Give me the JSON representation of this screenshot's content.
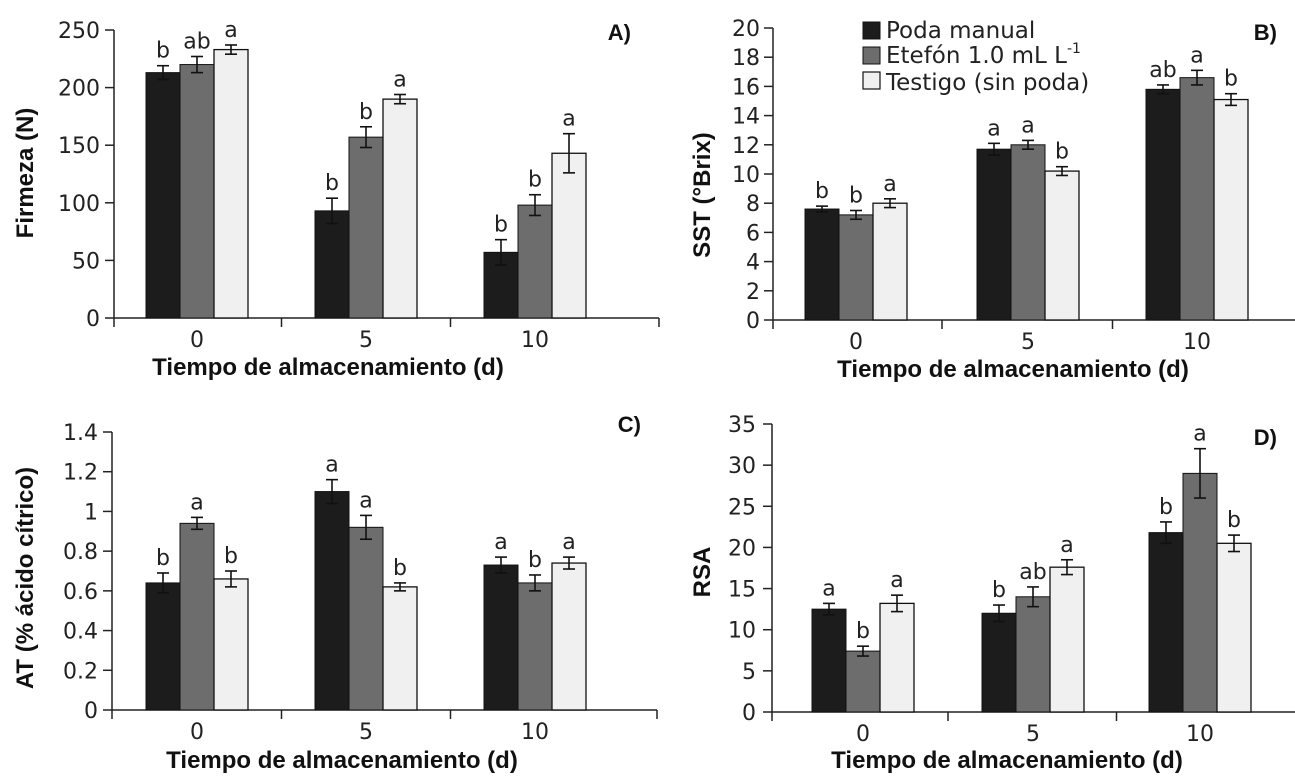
{
  "colors": {
    "poda": "#1c1c1c",
    "etefon": "#6d6d6d",
    "testigo": "#f0f0f0"
  },
  "legend": {
    "poda": "Poda manual",
    "etefon_main": "Etefón 1.0 mL L",
    "etefon_sup": "-1",
    "testigo": "Testigo (sin poda)"
  },
  "chart_data": [
    {
      "type": "bar",
      "panel": "A)",
      "xlabel": "Tiempo de almacenamiento (d)",
      "ylabel": "Firmeza (N)",
      "ylim": [
        0,
        250
      ],
      "yticks": [
        "0",
        "50",
        "100",
        "150",
        "200",
        "250"
      ],
      "categories": [
        "0",
        "5",
        "10"
      ],
      "series": [
        {
          "name": "Poda manual",
          "values": [
            213,
            93,
            57
          ],
          "errors": [
            6,
            11,
            11
          ],
          "letters": [
            "b",
            "b",
            "b"
          ]
        },
        {
          "name": "Etefón 1.0 mL L-1",
          "values": [
            220,
            157,
            98
          ],
          "errors": [
            7,
            9,
            9
          ],
          "letters": [
            "ab",
            "b",
            "b"
          ]
        },
        {
          "name": "Testigo (sin poda)",
          "values": [
            233,
            190,
            143
          ],
          "errors": [
            4,
            4,
            17
          ],
          "letters": [
            "a",
            "a",
            "a"
          ]
        }
      ]
    },
    {
      "type": "bar",
      "panel": "B)",
      "xlabel": "Tiempo de almacenamiento (d)",
      "ylabel": "SST (°Brix)",
      "ylim": [
        0,
        20
      ],
      "yticks": [
        "0",
        "2",
        "4",
        "6",
        "8",
        "10",
        "12",
        "14",
        "16",
        "18",
        "20"
      ],
      "categories": [
        "0",
        "5",
        "10"
      ],
      "series": [
        {
          "name": "Poda manual",
          "values": [
            7.6,
            11.7,
            15.8
          ],
          "errors": [
            0.2,
            0.4,
            0.3
          ],
          "letters": [
            "b",
            "a",
            "ab"
          ]
        },
        {
          "name": "Etefón 1.0 mL L-1",
          "values": [
            7.2,
            12.0,
            16.6
          ],
          "errors": [
            0.3,
            0.3,
            0.5
          ],
          "letters": [
            "b",
            "a",
            "a"
          ]
        },
        {
          "name": "Testigo (sin poda)",
          "values": [
            8.0,
            10.2,
            15.1
          ],
          "errors": [
            0.3,
            0.3,
            0.4
          ],
          "letters": [
            "a",
            "b",
            "b"
          ]
        }
      ]
    },
    {
      "type": "bar",
      "panel": "C)",
      "xlabel": "Tiempo de almacenamiento (d)",
      "ylabel": "AT (% ácido cítrico)",
      "ylim": [
        0,
        1.4
      ],
      "yticks": [
        "0",
        "0.2",
        "0.4",
        "0.6",
        "0.8",
        "1",
        "1.2",
        "1.4"
      ],
      "categories": [
        "0",
        "5",
        "10"
      ],
      "series": [
        {
          "name": "Poda manual",
          "values": [
            0.64,
            1.1,
            0.73
          ],
          "errors": [
            0.05,
            0.06,
            0.04
          ],
          "letters": [
            "b",
            "a",
            "a"
          ]
        },
        {
          "name": "Etefón 1.0 mL L-1",
          "values": [
            0.94,
            0.92,
            0.64
          ],
          "errors": [
            0.03,
            0.06,
            0.04
          ],
          "letters": [
            "a",
            "a",
            "b"
          ]
        },
        {
          "name": "Testigo (sin poda)",
          "values": [
            0.66,
            0.62,
            0.74
          ],
          "errors": [
            0.04,
            0.02,
            0.03
          ],
          "letters": [
            "b",
            "b",
            "a"
          ]
        }
      ]
    },
    {
      "type": "bar",
      "panel": "D)",
      "xlabel": "Tiempo de almacenamiento (d)",
      "ylabel": "RSA",
      "ylim": [
        0,
        35
      ],
      "yticks": [
        "0",
        "5",
        "10",
        "15",
        "20",
        "25",
        "30",
        "35"
      ],
      "categories": [
        "0",
        "5",
        "10"
      ],
      "series": [
        {
          "name": "Poda manual",
          "values": [
            12.5,
            12.0,
            21.8
          ],
          "errors": [
            0.7,
            1.0,
            1.3
          ],
          "letters": [
            "a",
            "b",
            "b"
          ]
        },
        {
          "name": "Etefón 1.0 mL L-1",
          "values": [
            7.4,
            14.0,
            29.0
          ],
          "errors": [
            0.6,
            1.2,
            3.0
          ],
          "letters": [
            "b",
            "ab",
            "a"
          ]
        },
        {
          "name": "Testigo (sin poda)",
          "values": [
            13.2,
            17.6,
            20.5
          ],
          "errors": [
            1.0,
            0.9,
            1.0
          ],
          "letters": [
            "a",
            "a",
            "b"
          ]
        }
      ]
    }
  ]
}
